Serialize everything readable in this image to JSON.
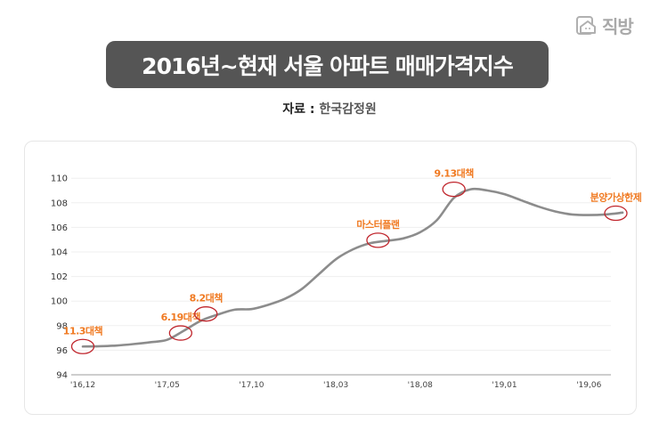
{
  "logo": {
    "icon": "house-icon",
    "text": "직방"
  },
  "header": {
    "title": "2016년~현재 서울 아파트 매매가격지수"
  },
  "source": {
    "label": "자료",
    "separator": ":",
    "value": "한국감정원"
  },
  "colors": {
    "line": "#8c8c8c",
    "annotation": "#f07a22",
    "circle": "#c0262d",
    "title_bg": "#555555"
  },
  "chart_data": {
    "type": "line",
    "title": "2016년~현재 서울 아파트 매매가격지수",
    "xlabel": "",
    "ylabel": "",
    "ylim": [
      94,
      110
    ],
    "yticks": [
      94,
      96,
      98,
      100,
      102,
      104,
      106,
      108,
      110
    ],
    "ytick_labels": [
      "94",
      "96",
      "98",
      "100",
      "102",
      "104",
      "106",
      "108",
      "110"
    ],
    "xtick_labels": [
      "'16,12",
      "'17,05",
      "'17,10",
      "'18,03",
      "'18,08",
      "'19,01",
      "'19,06"
    ],
    "xtick_months": [
      0,
      5,
      10,
      15,
      20,
      25,
      30
    ],
    "grid": true,
    "series": [
      {
        "name": "서울 아파트 매매가격지수",
        "x_months": [
          0,
          1,
          2,
          3,
          4,
          5,
          6,
          7,
          8,
          9,
          10,
          11,
          12,
          13,
          14,
          15,
          16,
          17,
          18,
          19,
          20,
          21,
          22,
          23,
          24,
          25,
          26,
          27,
          28,
          29,
          30,
          31,
          32
        ],
        "values": [
          96.3,
          96.32,
          96.38,
          96.5,
          96.65,
          96.85,
          97.6,
          98.4,
          98.9,
          99.3,
          99.35,
          99.7,
          100.2,
          101.0,
          102.2,
          103.4,
          104.2,
          104.7,
          104.9,
          105.1,
          105.6,
          106.6,
          108.4,
          109.1,
          109.0,
          108.7,
          108.2,
          107.7,
          107.3,
          107.05,
          107.0,
          107.05,
          107.2
        ]
      }
    ],
    "annotations": [
      {
        "label": "11.3대책",
        "x_month": 0,
        "value": 96.3
      },
      {
        "label": "6.19대책",
        "x_month": 5.8,
        "value": 97.4
      },
      {
        "label": "8.2대책",
        "x_month": 7.3,
        "value": 98.95
      },
      {
        "label": "마스터플랜",
        "x_month": 17.5,
        "value": 104.95
      },
      {
        "label": "9.13대책",
        "x_month": 22.0,
        "value": 109.1
      },
      {
        "label": "분양가상한제",
        "x_month": 31.6,
        "value": 107.15
      }
    ]
  }
}
